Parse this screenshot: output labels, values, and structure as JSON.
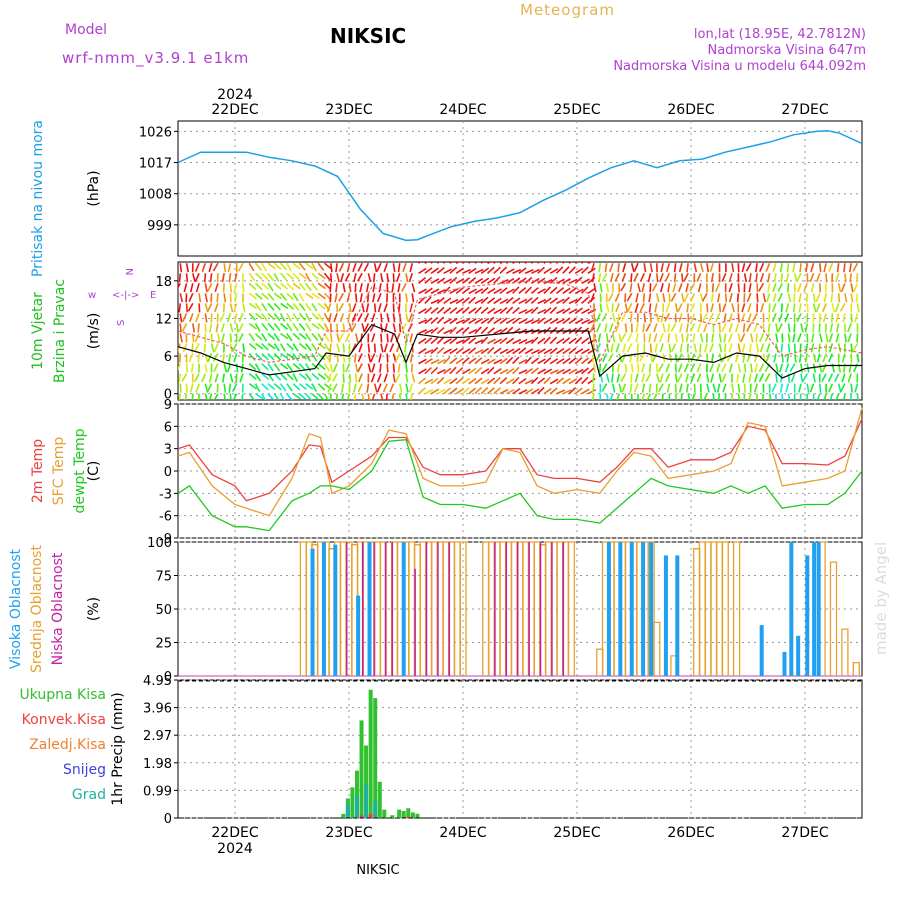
{
  "header": {
    "model_label": "Model",
    "model_name": "wrf-nmm_v3.9.1  e1km",
    "station": "NIKSIC",
    "product": "Meteogram",
    "coords": "lon,lat (18.95E, 42.7812N)",
    "elevation": "Nadmorska Visina 647m",
    "model_elevation": "Nadmorska Visina u modelu 644.092m",
    "footer_station": "NIKSIC",
    "watermark": "made by Angel"
  },
  "colors": {
    "pressure": "#1ea0e6",
    "t2m": "#f04040",
    "tsfc": "#e6a030",
    "dewpt": "#20c820",
    "wind_mean": "#000000",
    "wind_gust": "#f06060",
    "cloud_high": "#20a0f0",
    "cloud_mid": "#e6a030",
    "cloud_low": "#c020a0",
    "precip_total": "#30c030",
    "precip_conv": "#f04040",
    "precip_frozen": "#f08030",
    "precip_snow": "#4040e0",
    "precip_grad": "#20b0a0",
    "title_model": "#b040d0",
    "title_meteogram": "#e6b450",
    "info": "#b040d0"
  },
  "chart_data": [
    {
      "type": "line",
      "id": "pressure",
      "ylabel": "Pritisak na nivou mora",
      "unit": "(hPa)",
      "ylim": [
        990,
        1029
      ],
      "yticks": [
        999,
        1008,
        1017,
        1026
      ],
      "x_range": [
        21.5,
        27.5
      ],
      "xticks": [
        "22DEC",
        "23DEC",
        "24DEC",
        "25DEC",
        "26DEC",
        "27DEC"
      ],
      "year": "2024",
      "series": [
        {
          "x": [
            21.5,
            21.7,
            21.9,
            22.1,
            22.3,
            22.5,
            22.7,
            22.9,
            23.1,
            23.3,
            23.5,
            23.6,
            23.7,
            23.9,
            24.1,
            24.3,
            24.5,
            24.7,
            24.9,
            25.1,
            25.3,
            25.5,
            25.7,
            25.9,
            26.1,
            26.3,
            26.5,
            26.7,
            26.9,
            27.1,
            27.2,
            27.3,
            27.5
          ],
          "y": [
            1017,
            1020,
            1020,
            1020,
            1018.5,
            1017.5,
            1016,
            1013,
            1003.5,
            996.5,
            994.5,
            994.7,
            996,
            998.5,
            1000,
            1001,
            1002.5,
            1006,
            1009,
            1012.5,
            1015.5,
            1017.5,
            1015.5,
            1017.5,
            1018,
            1020,
            1021.5,
            1023,
            1025,
            1026,
            1026.2,
            1025.5,
            1022.5
          ]
        }
      ]
    },
    {
      "type": "line",
      "id": "wind",
      "ylabel": "10m Vjetar",
      "ylabel2": "Brzina i Pravac",
      "unit": "(m/s)",
      "ylim": [
        -1,
        21
      ],
      "yticks": [
        0,
        6,
        12,
        18
      ],
      "legend": [
        "w",
        "<-|->",
        "E",
        "N",
        "S"
      ],
      "series": [
        {
          "name": "mean",
          "x": [
            21.5,
            21.7,
            21.9,
            22.1,
            22.3,
            22.5,
            22.7,
            22.8,
            23.0,
            23.2,
            23.4,
            23.5,
            23.6,
            23.8,
            24.0,
            24.3,
            24.6,
            24.9,
            25.1,
            25.2,
            25.4,
            25.6,
            25.8,
            26.0,
            26.2,
            26.4,
            26.6,
            26.8,
            27.0,
            27.2,
            27.5
          ],
          "y": [
            7.5,
            6.5,
            5.0,
            4.0,
            3.0,
            3.5,
            4.0,
            6.5,
            6.0,
            11.0,
            9.5,
            5.0,
            9.5,
            9.0,
            9.0,
            9.5,
            10.0,
            10.0,
            10.0,
            2.8,
            6.0,
            6.5,
            5.5,
            5.5,
            5.0,
            6.5,
            6.0,
            2.5,
            4.0,
            4.5,
            4.5
          ]
        },
        {
          "name": "gust",
          "x": [
            21.5,
            21.7,
            21.9,
            22.1,
            22.3,
            22.5,
            22.7,
            22.8,
            23.0,
            23.2,
            23.4,
            23.5,
            23.6,
            23.8,
            24.0,
            24.3,
            24.6,
            24.9,
            25.1,
            25.2,
            25.4,
            25.6,
            25.8,
            26.0,
            26.2,
            26.4,
            26.6,
            26.8,
            27.0,
            27.2,
            27.5
          ],
          "y": [
            10,
            9,
            8,
            6,
            5,
            5.5,
            6,
            10,
            10,
            17,
            16,
            8,
            15,
            16,
            17,
            17.5,
            18,
            17.5,
            16,
            5,
            13,
            13,
            12,
            12,
            11,
            12,
            11,
            6,
            7,
            7.5,
            6.5
          ]
        }
      ]
    },
    {
      "type": "line",
      "id": "temp",
      "ylabel": "2m Temp",
      "ylabel2": "SFC Temp",
      "ylabel3": "dewpt Temp",
      "unit": "(C)",
      "ylim": [
        -9,
        9
      ],
      "yticks": [
        -9,
        -6,
        -3,
        0,
        3,
        6,
        9
      ],
      "series": [
        {
          "name": "2m Temp",
          "x": [
            21.5,
            21.6,
            21.8,
            22.0,
            22.1,
            22.3,
            22.5,
            22.65,
            22.75,
            22.85,
            23.0,
            23.2,
            23.35,
            23.5,
            23.65,
            23.8,
            24.0,
            24.2,
            24.35,
            24.5,
            24.65,
            24.8,
            25.0,
            25.2,
            25.35,
            25.5,
            25.65,
            25.8,
            26.0,
            26.2,
            26.35,
            26.5,
            26.65,
            26.8,
            27.0,
            27.2,
            27.35,
            27.5
          ],
          "y": [
            3,
            3.5,
            -0.5,
            -2,
            -4,
            -3,
            0,
            3.5,
            3.3,
            -1.5,
            0,
            2,
            4.5,
            4.5,
            0.5,
            -0.5,
            -0.5,
            0,
            3,
            3,
            -0.5,
            -1,
            -1,
            -1.5,
            0.5,
            3,
            3,
            0.5,
            1.5,
            1.5,
            2.5,
            6,
            5.5,
            1,
            1,
            0.8,
            2,
            7
          ]
        },
        {
          "name": "SFC Temp",
          "x": [
            21.5,
            21.6,
            21.8,
            22.0,
            22.1,
            22.3,
            22.5,
            22.65,
            22.75,
            22.85,
            23.0,
            23.2,
            23.35,
            23.5,
            23.65,
            23.8,
            24.0,
            24.2,
            24.35,
            24.5,
            24.65,
            24.8,
            25.0,
            25.2,
            25.35,
            25.5,
            25.65,
            25.8,
            26.0,
            26.2,
            26.35,
            26.5,
            26.65,
            26.8,
            27.0,
            27.2,
            27.35,
            27.5
          ],
          "y": [
            2,
            2.5,
            -2,
            -4.5,
            -5,
            -6,
            -1,
            5,
            4.5,
            -3,
            -2,
            1,
            5.5,
            5,
            -1,
            -2,
            -2,
            -1.5,
            3,
            2.5,
            -2,
            -3,
            -2.5,
            -3,
            0,
            2.5,
            2,
            -1,
            -0.5,
            0,
            1,
            6.5,
            6,
            -2,
            -1.5,
            -1,
            0,
            8.5
          ]
        },
        {
          "name": "dewpt Temp",
          "x": [
            21.5,
            21.6,
            21.8,
            22.0,
            22.1,
            22.3,
            22.5,
            22.65,
            22.75,
            22.85,
            23.0,
            23.2,
            23.35,
            23.5,
            23.65,
            23.8,
            24.0,
            24.2,
            24.35,
            24.5,
            24.65,
            24.8,
            25.0,
            25.2,
            25.35,
            25.5,
            25.65,
            25.8,
            26.0,
            26.2,
            26.35,
            26.5,
            26.65,
            26.8,
            27.0,
            27.2,
            27.35,
            27.5
          ],
          "y": [
            -3,
            -2,
            -6,
            -7.5,
            -7.5,
            -8,
            -4,
            -3,
            -2,
            -2,
            -2.5,
            0,
            4,
            4.2,
            -3.5,
            -4.5,
            -4.5,
            -5,
            -4,
            -3,
            -6,
            -6.5,
            -6.5,
            -7,
            -5,
            -3,
            -1,
            -2,
            -2.5,
            -3,
            -2,
            -3,
            -2,
            -5,
            -4.5,
            -4.5,
            -3,
            0
          ]
        }
      ]
    },
    {
      "type": "bar",
      "id": "clouds",
      "ylabel": "Visoka Oblacnost",
      "ylabel2": "Srednja Oblacnost",
      "ylabel3": "Niska Oblacnost",
      "unit": "(%)",
      "ylim": [
        0,
        100
      ],
      "yticks": [
        0,
        25,
        50,
        75,
        100
      ],
      "series": [
        {
          "name": "Srednja",
          "x": [
            22.6,
            22.65,
            22.7,
            22.75,
            22.8,
            22.85,
            22.9,
            22.95,
            23.0,
            23.05,
            23.1,
            23.15,
            23.2,
            23.25,
            23.3,
            23.4,
            23.45,
            23.5,
            23.55,
            23.6,
            23.65,
            23.7,
            23.75,
            23.8,
            23.85,
            23.9,
            23.95,
            24.0,
            24.2,
            24.25,
            24.3,
            24.35,
            24.4,
            24.45,
            24.5,
            24.55,
            24.6,
            24.65,
            24.7,
            24.75,
            24.8,
            24.85,
            24.9,
            24.95,
            25.2,
            25.25,
            25.3,
            25.35,
            25.4,
            25.45,
            25.5,
            25.55,
            25.6,
            25.65,
            25.7,
            25.85,
            26.05,
            26.1,
            26.15,
            26.2,
            26.25,
            26.3,
            26.4,
            27.15,
            27.25,
            27.35,
            27.45
          ],
          "y": [
            100,
            100,
            98,
            100,
            100,
            95,
            100,
            100,
            100,
            98,
            100,
            100,
            100,
            100,
            100,
            100,
            100,
            100,
            100,
            98,
            100,
            100,
            100,
            100,
            100,
            100,
            100,
            100,
            100,
            100,
            100,
            100,
            100,
            100,
            100,
            100,
            100,
            100,
            98,
            100,
            100,
            100,
            100,
            100,
            20,
            100,
            100,
            100,
            100,
            100,
            100,
            100,
            100,
            100,
            40,
            15,
            95,
            100,
            100,
            100,
            100,
            100,
            100,
            100,
            85,
            35,
            10
          ]
        },
        {
          "name": "Visoka",
          "x": [
            22.68,
            22.78,
            22.88,
            23.08,
            23.18,
            23.48,
            25.28,
            25.38,
            25.48,
            25.58,
            25.65,
            25.78,
            25.88,
            26.62,
            26.82,
            26.88,
            26.94,
            27.02,
            27.08,
            27.12
          ],
          "y": [
            95,
            100,
            98,
            60,
            100,
            100,
            100,
            100,
            100,
            100,
            100,
            90,
            90,
            38,
            18,
            100,
            30,
            90,
            100,
            100
          ]
        },
        {
          "name": "Niska",
          "x": [
            22.98,
            23.12,
            23.22,
            23.32,
            23.38,
            23.58,
            23.68,
            23.78,
            23.88,
            24.28,
            24.38,
            24.48,
            24.58,
            24.68,
            24.78,
            24.88
          ],
          "y": [
            100,
            100,
            100,
            100,
            100,
            80,
            100,
            100,
            100,
            100,
            100,
            100,
            100,
            100,
            100,
            100
          ]
        }
      ]
    },
    {
      "type": "bar",
      "id": "precip",
      "ylabel": "1hr Precip",
      "unit": "(mm)",
      "ylim": [
        0,
        4.95
      ],
      "yticks": [
        0,
        0.99,
        1.98,
        2.97,
        3.96,
        4.95
      ],
      "legend": [
        "Ukupna  Kisa",
        "Konvek.Kisa",
        "Zaledj.Kisa",
        "Snijeg",
        "Grad"
      ],
      "series": [
        {
          "name": "Ukupna  Kisa",
          "x": [
            22.95,
            22.99,
            23.03,
            23.07,
            23.11,
            23.15,
            23.19,
            23.23,
            23.27,
            23.31,
            23.38,
            23.44,
            23.48,
            23.52,
            23.56,
            23.6
          ],
          "y": [
            0.15,
            0.7,
            1.1,
            1.7,
            3.5,
            2.6,
            4.6,
            4.3,
            1.3,
            0.3,
            0.1,
            0.3,
            0.25,
            0.35,
            0.2,
            0.15
          ]
        },
        {
          "name": "Grad",
          "x": [
            22.99,
            23.07,
            23.15,
            23.23
          ],
          "y": [
            0.5,
            0.8,
            1.2,
            0.6
          ]
        },
        {
          "name": "Konvek.Kisa",
          "x": [
            23.11,
            23.19,
            23.52
          ],
          "y": [
            0.1,
            0.15,
            0.05
          ]
        }
      ]
    }
  ]
}
